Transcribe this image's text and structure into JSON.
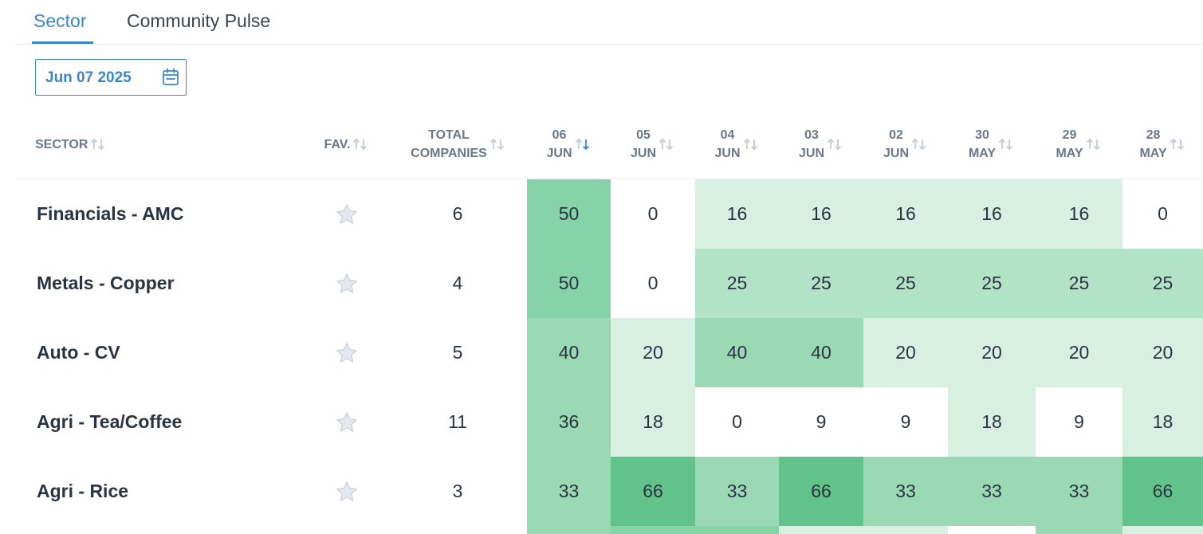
{
  "tabs": [
    {
      "label": "Sector",
      "active": true
    },
    {
      "label": "Community Pulse",
      "active": false
    }
  ],
  "date_picker": {
    "value": "Jun 07 2025",
    "icon": "calendar-icon"
  },
  "header": {
    "sector": "SECTOR",
    "fav": "FAV.",
    "total_line1": "TOTAL",
    "total_line2": "COMPANIES",
    "dates": [
      {
        "day": "06",
        "month": "JUN",
        "sorted": "desc"
      },
      {
        "day": "05",
        "month": "JUN"
      },
      {
        "day": "04",
        "month": "JUN"
      },
      {
        "day": "03",
        "month": "JUN"
      },
      {
        "day": "02",
        "month": "JUN"
      },
      {
        "day": "30",
        "month": "MAY"
      },
      {
        "day": "29",
        "month": "MAY"
      },
      {
        "day": "28",
        "month": "MAY"
      }
    ]
  },
  "rows": [
    {
      "sector": "Financials - AMC",
      "total": "6",
      "values": [
        "50",
        "0",
        "16",
        "16",
        "16",
        "16",
        "16",
        "0"
      ]
    },
    {
      "sector": "Metals - Copper",
      "total": "4",
      "values": [
        "50",
        "0",
        "25",
        "25",
        "25",
        "25",
        "25",
        "25"
      ]
    },
    {
      "sector": "Auto - CV",
      "total": "5",
      "values": [
        "40",
        "20",
        "40",
        "40",
        "20",
        "20",
        "20",
        "20"
      ]
    },
    {
      "sector": "Agri - Tea/Coffee",
      "total": "11",
      "values": [
        "36",
        "18",
        "0",
        "9",
        "9",
        "18",
        "9",
        "18"
      ]
    },
    {
      "sector": "Agri - Rice",
      "total": "3",
      "values": [
        "33",
        "66",
        "33",
        "66",
        "33",
        "33",
        "33",
        "66"
      ]
    }
  ],
  "colors": {
    "accent": "#3a86c8",
    "heat_0": "#ffffff",
    "heat_1": "#d8f0e1",
    "heat_2": "#b3e3c6",
    "heat_3": "#9bd9b5",
    "heat_4": "#87d3a8",
    "heat_5": "#62c38a"
  }
}
